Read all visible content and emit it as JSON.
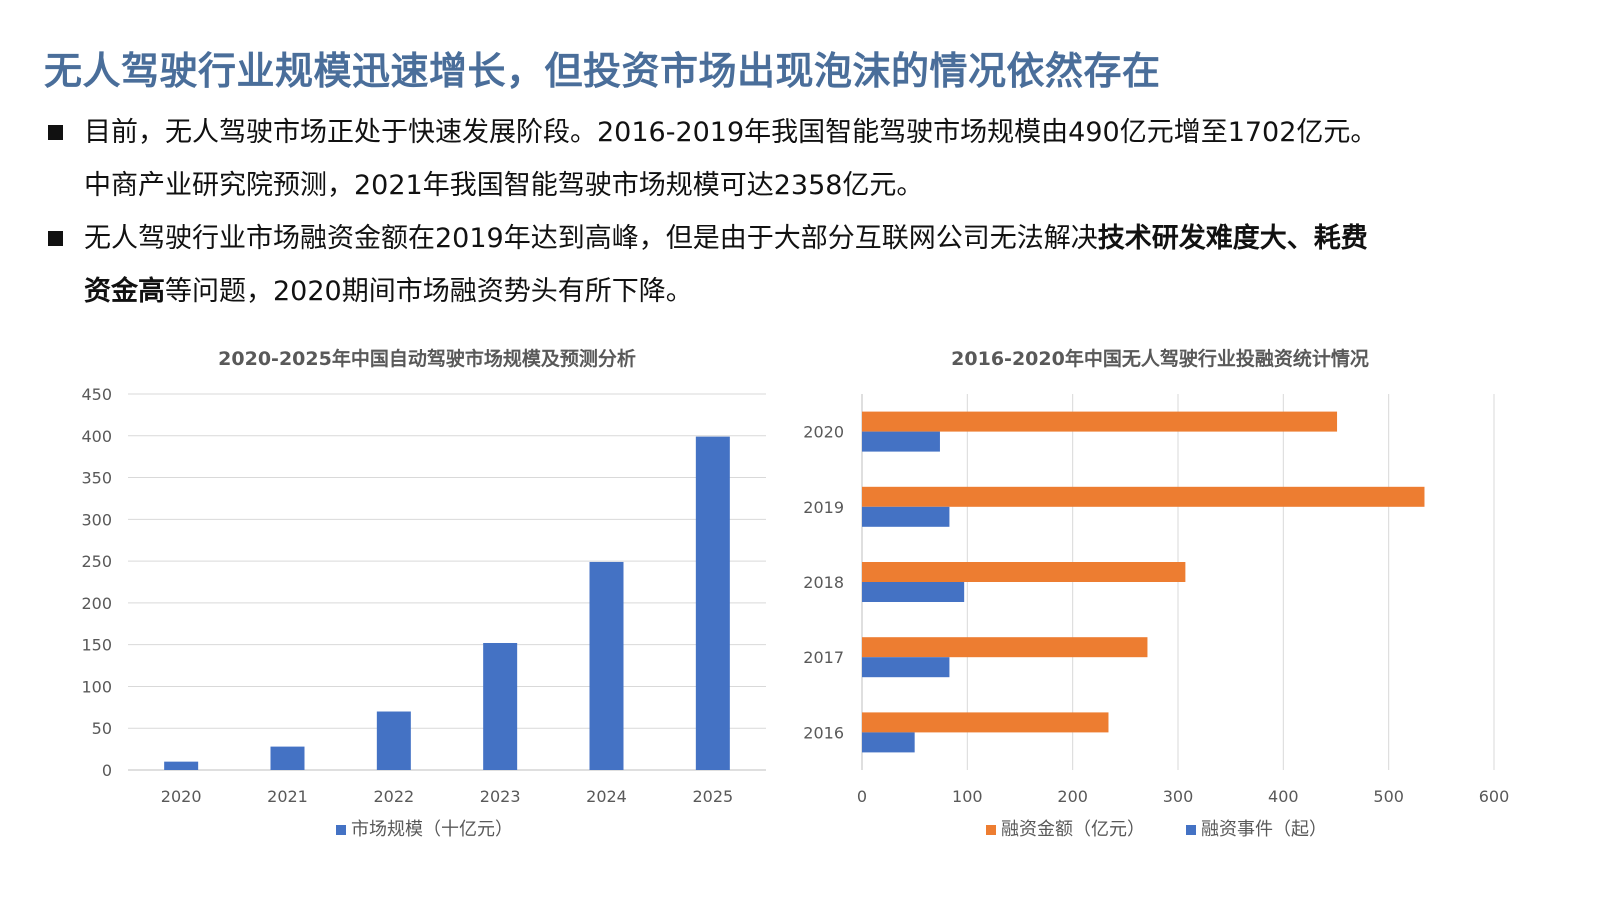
{
  "title": "无人驾驶行业规模迅速增长，但投资市场出现泡沫的情况依然存在",
  "bullets": [
    {
      "line1": "目前，无人驾驶市场正处于快速发展阶段。2016-2019年我国智能驾驶市场规模由490亿元增至1702亿元。",
      "line2": "中商产业研究院预测，2021年我国智能驾驶市场规模可达2358亿元。"
    },
    {
      "line1_a": "无人驾驶行业市场融资金额在2019年达到高峰，但是由于大部分互联网公司无法解决",
      "line1_bold": "技术研发难度大、耗费",
      "line2_bold": "资金高",
      "line2_b": "等问题，2020期间市场融资势头有所下降。"
    }
  ],
  "colors": {
    "title": "#4a6e9a",
    "blue": "#4472c4",
    "orange": "#ed7d31",
    "grid": "#d9d9d9",
    "axis_text": "#595959"
  },
  "chart_data": [
    {
      "type": "bar",
      "title": "2020-2025年中国自动驾驶市场规模及预测分析",
      "categories": [
        "2020",
        "2021",
        "2022",
        "2023",
        "2024",
        "2025"
      ],
      "series": [
        {
          "name": "市场规模（十亿元）",
          "values": [
            10,
            28,
            70,
            152,
            249,
            399
          ],
          "color": "#4472c4"
        }
      ],
      "ylim": [
        0,
        450
      ],
      "yticks": [
        "0",
        "50",
        "100",
        "150",
        "200",
        "250",
        "300",
        "350",
        "400",
        "450"
      ],
      "grid": true,
      "legend": "bottom"
    },
    {
      "type": "bar",
      "orientation": "horizontal",
      "title": "2016-2020年中国无人驾驶行业投融资统计情况",
      "categories": [
        "2016",
        "2017",
        "2018",
        "2019",
        "2020"
      ],
      "series": [
        {
          "name": "融资金额（亿元）",
          "values": [
            234,
            271,
            307,
            534,
            451
          ],
          "color": "#ed7d31"
        },
        {
          "name": "融资事件（起）",
          "values": [
            50,
            83,
            97,
            83,
            74
          ],
          "color": "#4472c4"
        }
      ],
      "xlim": [
        0,
        600
      ],
      "xticks": [
        "0",
        "100",
        "200",
        "300",
        "400",
        "500",
        "600"
      ],
      "grid": true,
      "legend": "bottom"
    }
  ]
}
